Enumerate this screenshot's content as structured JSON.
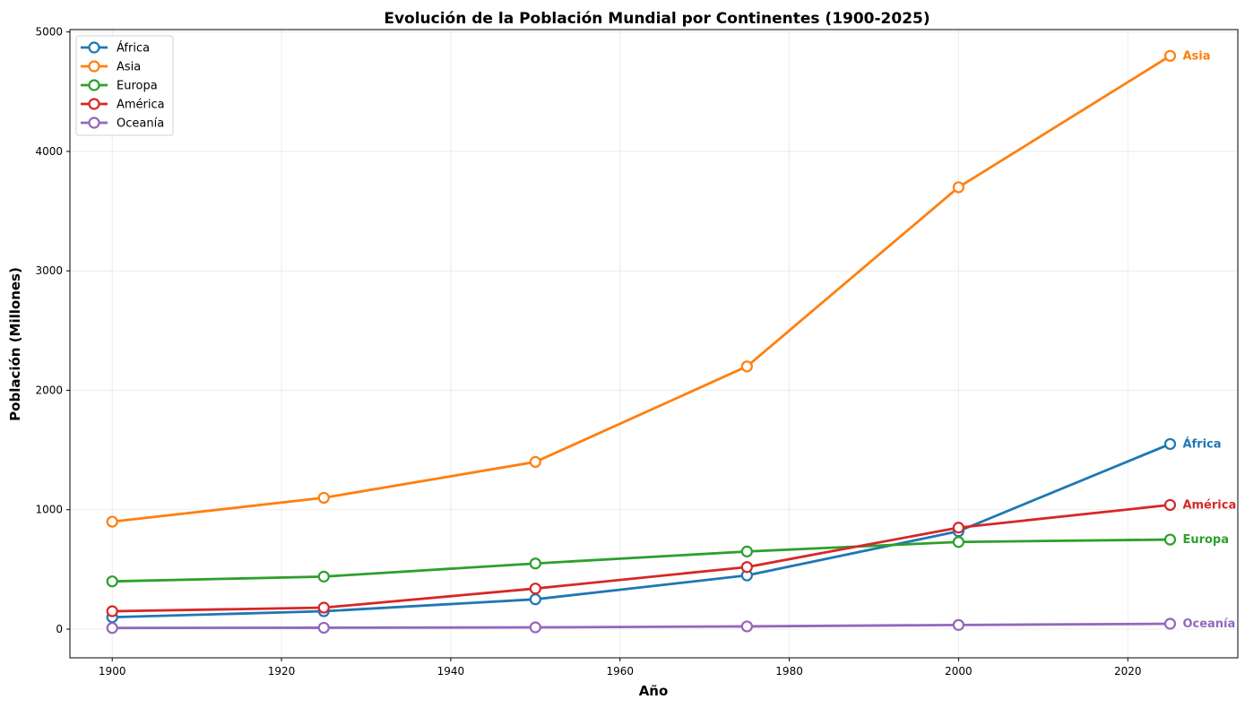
{
  "chart_data": {
    "type": "line",
    "title": "Evolución de la Población Mundial por Continentes (1900-2025)",
    "xlabel": "Año",
    "ylabel": "Población (Millones)",
    "x": [
      1900,
      1925,
      1950,
      1975,
      2000,
      2025
    ],
    "xlim": [
      1895,
      2033
    ],
    "ylim": [
      -240,
      5020
    ],
    "xticks": [
      1900,
      1920,
      1940,
      1960,
      1980,
      2000,
      2020
    ],
    "yticks": [
      0,
      1000,
      2000,
      3000,
      4000,
      5000
    ],
    "grid": true,
    "legend_position": "top-left",
    "series": [
      {
        "name": "África",
        "color": "#1f77b4",
        "values": [
          100,
          150,
          250,
          450,
          820,
          1550
        ]
      },
      {
        "name": "Asia",
        "color": "#ff7f0e",
        "values": [
          900,
          1100,
          1400,
          2200,
          3700,
          4800
        ]
      },
      {
        "name": "Europa",
        "color": "#2ca02c",
        "values": [
          400,
          440,
          550,
          650,
          730,
          750
        ]
      },
      {
        "name": "América",
        "color": "#d62728",
        "values": [
          150,
          180,
          340,
          520,
          850,
          1040
        ]
      },
      {
        "name": "Oceanía",
        "color": "#9467bd",
        "values": [
          10,
          12,
          15,
          23,
          35,
          45
        ]
      }
    ]
  }
}
